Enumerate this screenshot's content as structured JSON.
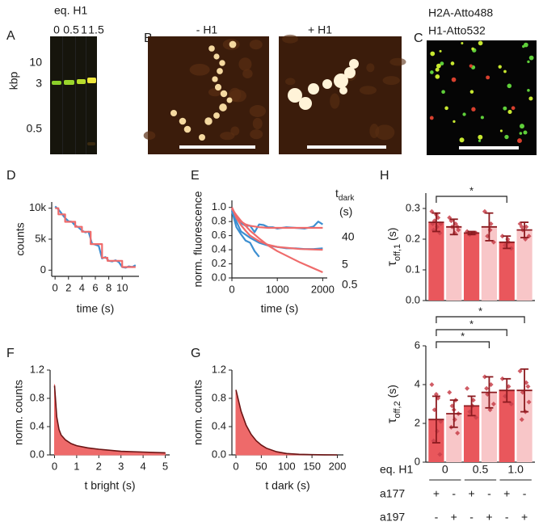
{
  "images": {
    "gel": {
      "label": "A",
      "title": "eq. H1",
      "lanes": [
        "0",
        "0.5",
        "1",
        "1.5"
      ],
      "axis_label": "kbp",
      "markers": [
        "10",
        "3",
        "0.5"
      ]
    },
    "afm": {
      "label": "B",
      "titles": [
        "- H1",
        "+ H1"
      ]
    },
    "fluorescence": {
      "label": "C",
      "channels": [
        {
          "name": "H2A-Atto488",
          "color": "#22a84a"
        },
        {
          "name": "H1-Atto532",
          "color": "#e4312b"
        }
      ]
    }
  },
  "chart_data": [
    {
      "type": "line",
      "label": "D",
      "xlabel": "time (s)",
      "ylabel": "counts",
      "xlim": [
        -0.5,
        12.5
      ],
      "xticks": [
        0,
        2,
        4,
        6,
        8,
        10
      ],
      "ylim": [
        -1000,
        11000
      ],
      "yticks": [
        0,
        {
          "value": 5000,
          "label": "5k"
        },
        {
          "value": 10000,
          "label": "10k"
        }
      ],
      "series": [
        {
          "color": "#3d8fd1",
          "x": [
            0,
            0.5,
            1,
            1.5,
            2,
            2.5,
            3,
            3.5,
            4,
            4.5,
            5,
            5.5,
            6,
            6.5,
            7,
            7.5,
            8,
            8.5,
            9,
            9.5,
            10,
            10.5,
            11,
            11.5,
            12
          ],
          "values": [
            10300,
            9800,
            9100,
            8400,
            7900,
            7800,
            7200,
            6900,
            6400,
            6100,
            6200,
            4300,
            4100,
            3900,
            1900,
            2100,
            1500,
            1400,
            1600,
            1300,
            500,
            400,
            600,
            500,
            800
          ]
        },
        {
          "color": "#ef6b6b",
          "x": [
            0,
            0.5,
            0.5,
            1.5,
            1.5,
            3,
            3,
            4,
            4,
            5.3,
            5.3,
            7,
            7,
            7.8,
            7.8,
            10,
            10,
            12
          ],
          "values": [
            10000,
            10000,
            9000,
            9000,
            7800,
            7800,
            7000,
            7000,
            6200,
            6200,
            4200,
            4200,
            2000,
            2000,
            1500,
            1500,
            500,
            500
          ]
        }
      ]
    },
    {
      "type": "line",
      "label": "E",
      "xlabel": "time (s)",
      "ylabel": "norm. fluorescence",
      "xlim": [
        0,
        2100
      ],
      "xticks": [
        0,
        1000,
        2000
      ],
      "ylim": [
        0,
        1.1
      ],
      "yticks": [
        {
          "value": 0,
          "label": "0.0"
        },
        0.2,
        0.4,
        0.6,
        0.8,
        {
          "value": 1,
          "label": "1.0"
        }
      ],
      "series": [
        {
          "color": "#3d8fd1",
          "x": [
            0,
            100,
            200,
            300,
            400,
            500,
            600,
            700,
            800,
            900,
            1000,
            1200,
            1400,
            1600,
            1800,
            1900,
            2000
          ],
          "values": [
            1.0,
            0.86,
            0.78,
            0.74,
            0.74,
            0.65,
            0.76,
            0.75,
            0.72,
            0.72,
            0.7,
            0.72,
            0.71,
            0.7,
            0.73,
            0.8,
            0.76
          ]
        },
        {
          "color": "#3d8fd1",
          "x": [
            0,
            100,
            200,
            400,
            600,
            800,
            1000,
            1200,
            1400,
            1600,
            1800,
            2000
          ],
          "values": [
            0.97,
            0.8,
            0.66,
            0.57,
            0.5,
            0.46,
            0.44,
            0.42,
            0.42,
            0.41,
            0.41,
            0.42
          ]
        },
        {
          "color": "#3d8fd1",
          "x": [
            0,
            100,
            200,
            300,
            400,
            500,
            600
          ],
          "values": [
            0.95,
            0.72,
            0.62,
            0.53,
            0.5,
            0.38,
            0.3
          ]
        },
        {
          "color": "#ef6b6b",
          "x": [
            0,
            100,
            200,
            300,
            400,
            600,
            800,
            1000,
            1500,
            2000
          ],
          "values": [
            1.0,
            0.87,
            0.8,
            0.76,
            0.74,
            0.72,
            0.71,
            0.71,
            0.71,
            0.71
          ]
        },
        {
          "color": "#ef6b6b",
          "x": [
            0,
            100,
            200,
            300,
            400,
            600,
            800,
            1000,
            1500,
            2000
          ],
          "values": [
            1.0,
            0.85,
            0.75,
            0.67,
            0.6,
            0.52,
            0.47,
            0.44,
            0.41,
            0.4
          ]
        },
        {
          "color": "#ef6b6b",
          "x": [
            0,
            100,
            200,
            300,
            400,
            600,
            800,
            1000,
            1500,
            2000
          ],
          "values": [
            0.98,
            0.89,
            0.81,
            0.74,
            0.67,
            0.56,
            0.46,
            0.38,
            0.22,
            0.08
          ]
        }
      ],
      "annotations": {
        "header": {
          "main": "t",
          "sub": "dark"
        },
        "unit": "(s)",
        "labels": [
          "40",
          "5",
          "0.5"
        ]
      }
    },
    {
      "type": "area",
      "label": "F",
      "xlabel": "t bright (s)",
      "ylabel": "norm. counts",
      "xlim": [
        -0.2,
        5.2
      ],
      "xticks": [
        0,
        1,
        2,
        3,
        4,
        5
      ],
      "ylim": [
        0,
        1.2
      ],
      "yticks": [
        {
          "value": 0,
          "label": "0.0"
        },
        0.4,
        0.8,
        1.2
      ],
      "x": [
        0,
        0.1,
        0.2,
        0.3,
        0.5,
        0.75,
        1,
        1.5,
        2,
        3,
        4,
        5
      ],
      "series": [
        {
          "color": "#ee6a6a",
          "fill": true,
          "values": [
            1.0,
            0.55,
            0.35,
            0.27,
            0.2,
            0.16,
            0.13,
            0.1,
            0.08,
            0.05,
            0.04,
            0.03
          ]
        },
        {
          "color": "#6b1414",
          "fill": false,
          "values": [
            0.98,
            0.54,
            0.36,
            0.28,
            0.21,
            0.16,
            0.13,
            0.1,
            0.08,
            0.05,
            0.04,
            0.03
          ]
        }
      ]
    },
    {
      "type": "area",
      "label": "G",
      "xlabel": "t dark (s)",
      "ylabel": "norm. counts",
      "xlim": [
        -8,
        212
      ],
      "xticks": [
        0,
        50,
        100,
        150,
        200
      ],
      "ylim": [
        0,
        1.2
      ],
      "yticks": [
        {
          "value": 0,
          "label": "0.0"
        },
        0.4,
        0.8,
        1.2
      ],
      "x": [
        0,
        10,
        20,
        30,
        40,
        50,
        60,
        80,
        100,
        125,
        150,
        175,
        200
      ],
      "series": [
        {
          "color": "#ee6a6a",
          "fill": true,
          "values": [
            0.92,
            0.62,
            0.42,
            0.29,
            0.2,
            0.14,
            0.095,
            0.045,
            0.02,
            0.008,
            0.003,
            0.001,
            0
          ]
        },
        {
          "color": "#6b1414",
          "fill": false,
          "values": [
            0.92,
            0.62,
            0.42,
            0.29,
            0.2,
            0.14,
            0.095,
            0.045,
            0.02,
            0.008,
            0.003,
            0.001,
            0
          ]
        }
      ]
    },
    {
      "type": "bar",
      "label": "H",
      "ylabel": {
        "main": "τ",
        "sub": "off,1",
        "unit": "(s)"
      },
      "ylim": [
        0,
        0.35
      ],
      "yticks": [
        {
          "value": 0,
          "label": "0.0"
        },
        0.1,
        0.2,
        0.3
      ],
      "colors": [
        "#e9575c",
        "#f8c6c8",
        "#e9575c",
        "#f8c6c8",
        "#e9575c",
        "#f8c6c8"
      ],
      "error_color": "#8b1a1f",
      "point_color": "#c8404a",
      "values": [
        0.255,
        0.24,
        0.22,
        0.24,
        0.19,
        0.23
      ],
      "errors": [
        0.03,
        0.025,
        0.005,
        0.045,
        0.02,
        0.025
      ],
      "points": [
        [
          0.29,
          0.27,
          0.26,
          0.25,
          0.24,
          0.23,
          0.22,
          0.28,
          0.25
        ],
        [
          0.27,
          0.25,
          0.24,
          0.23,
          0.22,
          0.26,
          0.24
        ],
        [
          0.225,
          0.22,
          0.215,
          0.22
        ],
        [
          0.29,
          0.25,
          0.21,
          0.19,
          0.23
        ],
        [
          0.21,
          0.19,
          0.18,
          0.17,
          0.2
        ],
        [
          0.25,
          0.24,
          0.23,
          0.21,
          0.2,
          0.24
        ]
      ],
      "significance": [
        "*"
      ]
    },
    {
      "type": "bar",
      "ylabel": {
        "main": "τ",
        "sub": "off,2",
        "unit": "(s)"
      },
      "ylim": [
        0,
        6
      ],
      "yticks": [
        0,
        2,
        4,
        6
      ],
      "colors": [
        "#e9575c",
        "#f8c6c8",
        "#e9575c",
        "#f8c6c8",
        "#e9575c",
        "#f8c6c8"
      ],
      "error_color": "#8b1a1f",
      "point_color": "#c8404a",
      "values": [
        2.2,
        2.5,
        2.9,
        3.6,
        3.7,
        3.7
      ],
      "errors": [
        1.2,
        0.7,
        0.5,
        0.8,
        0.6,
        1.1
      ],
      "points": [
        [
          4.0,
          3.3,
          2.7,
          2.1,
          1.6,
          1.1,
          0.4,
          3.5
        ],
        [
          3.6,
          3.2,
          2.9,
          2.5,
          2.2,
          1.8,
          1.5,
          2.7
        ],
        [
          3.8,
          3.2,
          2.6,
          2.3,
          2.9
        ],
        [
          4.4,
          4.0,
          3.5,
          3.0,
          2.7,
          3.8
        ],
        [
          4.3,
          3.9,
          3.4,
          3.0
        ],
        [
          4.7,
          4.1,
          3.6,
          3.1,
          2.6,
          2.2,
          3.9
        ]
      ],
      "significance": [
        "*",
        "*",
        "*"
      ],
      "table": {
        "label": "eq. H1",
        "groups": [
          "0",
          "0.5",
          "1.0"
        ],
        "rows": [
          {
            "name": "a177",
            "signs": [
              "+",
              "-",
              "+",
              "-",
              "+",
              "-"
            ]
          },
          {
            "name": "a197",
            "signs": [
              "-",
              "+",
              "-",
              "+",
              "-",
              "+"
            ]
          }
        ]
      }
    }
  ]
}
